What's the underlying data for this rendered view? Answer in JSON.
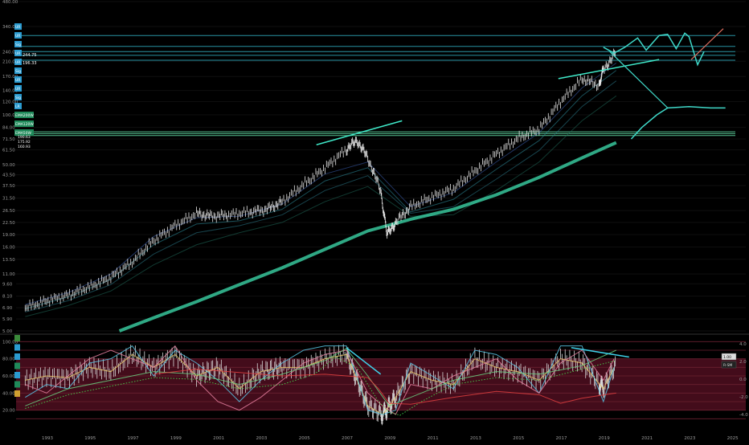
{
  "chart_data": [
    {
      "type": "candlestick",
      "panel": "price",
      "scale": "log",
      "yticks": [
        "480.00",
        "340.00",
        "240.00",
        "210.00",
        "170.00",
        "140.00",
        "120.00",
        "100.00",
        "84.00",
        "71.50",
        "61.50",
        "50.00",
        "43.50",
        "37.50",
        "31.50",
        "26.50",
        "22.50",
        "19.00",
        "16.00",
        "13.50",
        "11.00",
        "9.60",
        "8.10",
        "6.90",
        "5.90",
        "5.00"
      ],
      "ylim": [
        5.0,
        480.0
      ],
      "x": [
        1992.0,
        1993.0,
        1994.0,
        1995.0,
        1996.0,
        1997.0,
        1998.0,
        1999.0,
        2000.0,
        2000.7,
        2001.5,
        2002.5,
        2003.3,
        2004.0,
        2005.0,
        2006.0,
        2007.0,
        2007.5,
        2008.0,
        2008.6,
        2008.9,
        2009.3,
        2010.0,
        2011.0,
        2012.0,
        2013.0,
        2014.0,
        2015.0,
        2016.0,
        2017.0,
        2018.0,
        2018.8,
        2019.0,
        2019.6
      ],
      "close": [
        6.9,
        7.6,
        8.2,
        9.2,
        10.5,
        13.0,
        17.5,
        21.5,
        25.5,
        24.5,
        25.0,
        26.0,
        27.0,
        30.0,
        38.0,
        48.0,
        62.0,
        70.0,
        55.0,
        35.0,
        19.0,
        22.5,
        28.0,
        32.0,
        36.0,
        46.0,
        58.0,
        72.0,
        82.0,
        120.0,
        165.0,
        150.0,
        185.0,
        240.0
      ],
      "series": [
        {
          "name": "",
          "x": [
            1992.0,
            1994.0,
            1996.0,
            1998.0,
            2000.0,
            2002.0,
            2004.0,
            2006.0,
            2008.0,
            2010.0,
            2012.0,
            2014.0,
            2016.0,
            2018.0,
            2019.6
          ],
          "values": [
            7.2,
            8.5,
            11.0,
            18.5,
            24.0,
            24.5,
            29.0,
            44.0,
            52.0,
            28.0,
            34.0,
            52.0,
            78.0,
            145.0,
            205.0
          ]
        },
        {
          "name": "",
          "x": [
            1992.0,
            1994.0,
            1996.0,
            1998.0,
            2000.0,
            2002.0,
            2004.0,
            2006.0,
            2008.0,
            2010.0,
            2012.0,
            2014.0,
            2016.0,
            2018.0,
            2019.6
          ],
          "values": [
            6.8,
            8.0,
            10.2,
            16.5,
            22.0,
            23.0,
            27.0,
            40.0,
            48.0,
            26.0,
            31.0,
            47.0,
            70.0,
            130.0,
            185.0
          ]
        },
        {
          "name": "",
          "x": [
            1992.0,
            1994.0,
            1996.0,
            1998.0,
            2000.0,
            2002.0,
            2004.0,
            2006.0,
            2008.0,
            2010.0,
            2012.0,
            2014.0,
            2016.0,
            2018.0,
            2019.6
          ],
          "values": [
            6.5,
            7.6,
            9.5,
            14.5,
            19.5,
            21.5,
            25.0,
            35.0,
            43.0,
            25.5,
            28.0,
            41.0,
            61.0,
            112.0,
            160.0
          ]
        },
        {
          "name": "",
          "x": [
            1992.0,
            1994.0,
            1996.0,
            1998.0,
            2000.0,
            2002.0,
            2004.0,
            2006.0,
            2008.0,
            2010.0,
            2012.0,
            2014.0,
            2016.0,
            2018.0,
            2019.6
          ],
          "values": [
            6.1,
            7.1,
            8.7,
            12.5,
            16.5,
            19.5,
            22.5,
            30.0,
            37.0,
            24.5,
            25.0,
            35.0,
            52.0,
            92.0,
            130.0
          ]
        },
        {
          "name": "",
          "x": [
            1996.4,
            1998.0,
            2000.0,
            2002.0,
            2004.0,
            2006.0,
            2008.0,
            2010.0,
            2012.0,
            2014.0,
            2016.0,
            2018.0,
            2019.6
          ],
          "values": [
            5.0,
            6.0,
            7.5,
            9.5,
            12.0,
            15.5,
            20.0,
            23.5,
            27.0,
            33.0,
            42.0,
            55.0,
            68.0
          ]
        }
      ],
      "projections": [
        {
          "x": [
            2019.0,
            2019.5,
            2020.0,
            2020.6,
            2021.0,
            2021.6,
            2022.0,
            2022.4,
            2022.8,
            2023.0,
            2023.4,
            2023.7
          ],
          "values": [
            255.0,
            235.0,
            255.0,
            290.0,
            245.0,
            300.0,
            305.0,
            250.0,
            310.0,
            295.0,
            200.0,
            240.0
          ]
        },
        {
          "x": [
            2020.3,
            2020.8,
            2021.5,
            2022.0,
            2023.0,
            2024.0,
            2024.7
          ],
          "values": [
            71.5,
            84.0,
            100.0,
            110.0,
            112.0,
            110.0,
            110.0
          ]
        }
      ],
      "levels": [
        300.0,
        258.0,
        240.0,
        228.0,
        213.0,
        79.0,
        77.0,
        75.0
      ],
      "xticks": [
        "1993",
        "1995",
        "1997",
        "1999",
        "2001",
        "2003",
        "2005",
        "2007",
        "2009",
        "2011",
        "2013",
        "2015",
        "2017",
        "2019",
        "2021",
        "2023",
        "2025"
      ],
      "xlim": [
        1991.5,
        2025.8
      ],
      "side_tags": [
        "UR",
        "UR",
        "Sig",
        "UR",
        "UR",
        "Sig",
        "UR",
        "UR",
        "Sig",
        "LR",
        "EMA200W",
        "EMA120W",
        "EMA50W"
      ],
      "price_badges": [
        "244.75",
        "196.33"
      ],
      "bottom_tags": [
        "190.63",
        "175.92",
        "160.93"
      ]
    },
    {
      "type": "line",
      "panel": "oscillator",
      "left_ticks": [
        "100.00",
        "80.00",
        "60.00",
        "40.00",
        "20.00"
      ],
      "right_ticks": [
        "4.0",
        "2.0",
        "0.0",
        "-2.0",
        "-4.0"
      ],
      "ylim": [
        0,
        105
      ],
      "band": [
        20,
        80
      ],
      "levels": [
        100,
        90,
        80,
        70,
        60,
        50,
        40,
        30,
        20,
        10
      ],
      "series": [
        {
          "name": "",
          "x": [
            1992.0,
            1993.0,
            1994.0,
            1995.0,
            1996.0,
            1997.0,
            1998.0,
            1999.0,
            2000.0,
            2001.0,
            2002.0,
            2003.0,
            2004.0,
            2005.0,
            2006.0,
            2007.0,
            2008.0,
            2008.7,
            2009.3,
            2010.0,
            2011.0,
            2012.0,
            2013.0,
            2014.0,
            2015.0,
            2016.0,
            2017.0,
            2018.0,
            2019.0,
            2019.5
          ],
          "values": [
            55,
            60,
            58,
            70,
            65,
            85,
            70,
            85,
            60,
            70,
            45,
            65,
            70,
            70,
            80,
            85,
            25,
            15,
            35,
            65,
            55,
            50,
            80,
            70,
            65,
            55,
            80,
            75,
            45,
            70
          ]
        },
        {
          "name": "",
          "x": [
            1992.0,
            1993.0,
            1994.0,
            1995.0,
            1996.0,
            1997.0,
            1998.0,
            1999.0,
            2000.0,
            2001.0,
            2002.0,
            2003.0,
            2004.0,
            2005.0,
            2006.0,
            2007.0,
            2008.0,
            2008.7,
            2009.3,
            2010.0,
            2011.0,
            2012.0,
            2013.0,
            2014.0,
            2015.0,
            2016.0,
            2017.0,
            2018.0,
            2019.0,
            2019.5
          ],
          "values": [
            35,
            50,
            45,
            75,
            80,
            95,
            60,
            90,
            75,
            55,
            30,
            55,
            75,
            90,
            95,
            95,
            20,
            15,
            20,
            75,
            60,
            45,
            90,
            85,
            70,
            40,
            95,
            95,
            30,
            70
          ]
        },
        {
          "name": "",
          "x": [
            1992.0,
            1993.0,
            1994.0,
            1995.0,
            1996.0,
            1997.0,
            1998.0,
            1999.0,
            2000.0,
            2001.0,
            2002.0,
            2003.0,
            2004.0,
            2005.0,
            2006.0,
            2007.0,
            2008.0,
            2008.7,
            2009.3,
            2010.0,
            2011.0,
            2012.0,
            2013.0,
            2014.0,
            2015.0,
            2016.0,
            2017.0,
            2018.0,
            2019.0,
            2019.5
          ],
          "values": [
            50,
            40,
            60,
            80,
            90,
            80,
            70,
            95,
            55,
            30,
            20,
            35,
            55,
            75,
            85,
            90,
            40,
            25,
            15,
            50,
            45,
            60,
            70,
            80,
            55,
            40,
            75,
            90,
            55,
            80
          ]
        },
        {
          "name": "",
          "x": [
            1992.0,
            1994.0,
            1996.0,
            1998.0,
            2000.0,
            2002.0,
            2004.0,
            2006.0,
            2007.0,
            2008.0,
            2009.0,
            2010.0,
            2012.0,
            2014.0,
            2016.0,
            2018.0,
            2019.6
          ],
          "values": [
            25,
            45,
            55,
            65,
            62,
            50,
            62,
            78,
            92,
            60,
            25,
            35,
            55,
            65,
            62,
            72,
            90
          ]
        },
        {
          "name": "",
          "x": [
            1992.0,
            1994.0,
            1996.0,
            1998.0,
            2000.0,
            2002.0,
            2004.0,
            2005.5,
            2006.5,
            2007.5,
            2008.5,
            2009.0,
            2009.5,
            2010.5,
            2012.0,
            2014.0,
            2016.0,
            2018.0,
            2019.6
          ],
          "values": [
            22,
            38,
            48,
            58,
            56,
            45,
            50,
            62,
            82,
            70,
            30,
            18,
            14,
            30,
            50,
            58,
            55,
            68,
            78
          ]
        },
        {
          "name": "",
          "x": [
            1998.0,
            2000.0,
            2002.0,
            2004.0,
            2006.0,
            2008.0,
            2008.5,
            2009.0,
            2010.0,
            2012.0,
            2014.0,
            2016.0,
            2017.0,
            2018.0,
            2019.6
          ],
          "values": [
            62,
            68,
            64,
            60,
            62,
            58,
            45,
            28,
            27,
            35,
            42,
            38,
            28,
            34,
            40
          ]
        }
      ],
      "divergence_lines": [
        {
          "x": [
            2007.0,
            2008.6
          ],
          "values": [
            93,
            62
          ]
        },
        {
          "x": [
            2017.5,
            2020.2
          ],
          "values": [
            93,
            82
          ]
        }
      ],
      "side_tags": [
        "RSI",
        "K",
        "D",
        "SMA",
        "RSI",
        "MFI",
        "CCI"
      ],
      "right_badges": [
        "1.00",
        "R-SM"
      ]
    }
  ]
}
